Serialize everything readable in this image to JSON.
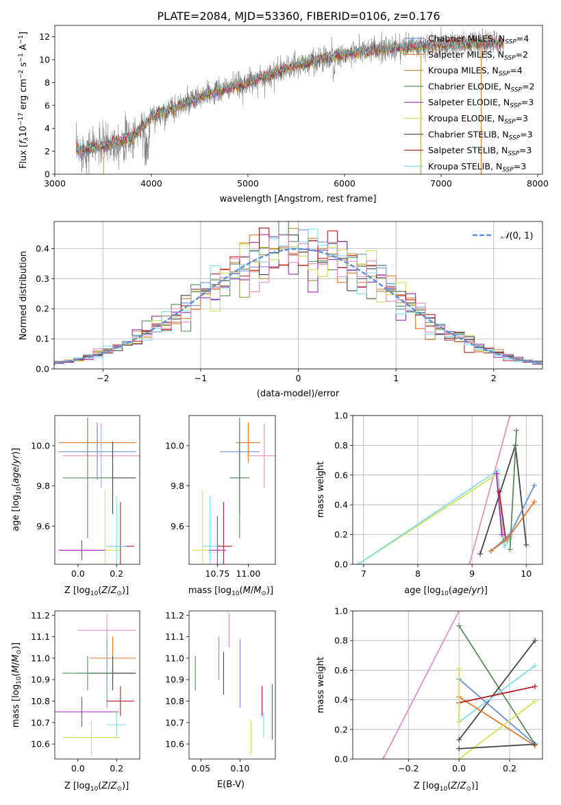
{
  "figure": {
    "title": "PLATE=2084, MJD=53360, FIBERID=0106, z=0.176"
  },
  "colors": {
    "ch_miles": "#6a8fd9",
    "sa_miles": "#e07a2a",
    "kr_miles": "#b5913a",
    "ch_elodie": "#5a8a5a",
    "sa_elodie": "#9b2fae",
    "kr_elodie": "#d4e157",
    "ch_stelib": "#444444",
    "sa_stelib": "#b71c1c",
    "kr_stelib": "#80deea",
    "pink": "#e38fbf",
    "gray": "#7f7f7f",
    "normal": "#5b8fd6"
  },
  "chart_data": [
    {
      "id": "spectrum",
      "type": "line",
      "xlabel": "wavelength [Angstrom, rest frame]",
      "ylabel_main": "Flux [",
      "ylabel_f": "f",
      "ylabel_sub": "λ",
      "ylabel_rest": "10",
      "ylabel_e17": "−17",
      "ylabel_units": " erg cm",
      "ylabel_e2": "−2",
      "ylabel_s": " s",
      "ylabel_e1": "−1",
      "ylabel_a": " A",
      "ylabel_end": "]",
      "xlim": [
        3000,
        8050
      ],
      "ylim": [
        0,
        13
      ],
      "xticks": [
        "3000",
        "4000",
        "5000",
        "6000",
        "7000",
        "8000"
      ],
      "yticks": [
        "0",
        "2",
        "4",
        "6",
        "8",
        "10",
        "12"
      ],
      "x_range": [
        3220,
        7650
      ],
      "flux_knots": [
        [
          3220,
          2.0
        ],
        [
          3500,
          2.5
        ],
        [
          3800,
          3.2
        ],
        [
          4000,
          5.0
        ],
        [
          4300,
          6.0
        ],
        [
          4600,
          7.0
        ],
        [
          5000,
          8.0
        ],
        [
          5500,
          9.5
        ],
        [
          6000,
          10.5
        ],
        [
          6500,
          11.0
        ],
        [
          7000,
          11.3
        ],
        [
          7500,
          11.5
        ],
        [
          7650,
          11.4
        ]
      ],
      "legend": [
        {
          "label": "Chabrier MILES, N",
          "sub": "SSP",
          "val": "=4",
          "color": "ch_miles"
        },
        {
          "label": "Salpeter MILES, N",
          "sub": "SSP",
          "val": "=2",
          "color": "sa_miles"
        },
        {
          "label": "Kroupa MILES, N",
          "sub": "SSP",
          "val": "=4",
          "color": "kr_miles"
        },
        {
          "label": "Chabrier ELODIE, N",
          "sub": "SSP",
          "val": "=2",
          "color": "ch_elodie"
        },
        {
          "label": "Salpeter ELODIE, N",
          "sub": "SSP",
          "val": "=3",
          "color": "sa_elodie"
        },
        {
          "label": "Kroupa ELODIE, N",
          "sub": "SSP",
          "val": "=3",
          "color": "kr_elodie"
        },
        {
          "label": "Chabrier STELIB, N",
          "sub": "SSP",
          "val": "=3",
          "color": "ch_stelib"
        },
        {
          "label": "Salpeter STELIB, N",
          "sub": "SSP",
          "val": "=3",
          "color": "sa_stelib"
        },
        {
          "label": "Kroupa STELIB, N",
          "sub": "SSP",
          "val": "=3",
          "color": "kr_stelib"
        }
      ]
    },
    {
      "id": "hist",
      "type": "step",
      "xlabel": "(data-model)/error",
      "ylabel": "Normed distribution",
      "xlim": [
        -2.5,
        2.5
      ],
      "ylim": [
        0,
        0.49
      ],
      "xticks": [
        -2,
        -1,
        0,
        1,
        2
      ],
      "xtick_labels": [
        "−2",
        "−1",
        "0",
        "1",
        "2"
      ],
      "yticks": [
        0,
        0.1,
        0.2,
        0.3,
        0.4
      ],
      "ytick_labels": [
        "0.0",
        "0.1",
        "0.2",
        "0.3",
        "0.4"
      ],
      "bin_width": 0.1,
      "legend_label": "(0, 1)",
      "legend_script": "𝒩"
    },
    {
      "id": "age_vs_Z",
      "type": "errorbar",
      "xlabel": "Z [log",
      "ylabel": "age  [log",
      "xlim": [
        -0.12,
        0.32
      ],
      "ylim": [
        9.41,
        10.15
      ],
      "xticks": [
        0.0,
        0.2
      ],
      "xtick_labels": [
        "0.0",
        "0.2"
      ],
      "yticks": [
        9.6,
        9.8,
        10.0
      ],
      "ytick_labels": [
        "9.6",
        "9.8",
        "10.0"
      ],
      "points": [
        {
          "x": 0.1,
          "xerr": 0.2,
          "y": 10.015,
          "yerr": 0.1,
          "color": "sa_miles"
        },
        {
          "x": 0.1,
          "xerr": 0.2,
          "y": 9.97,
          "yerr": 0.14,
          "color": "ch_miles"
        },
        {
          "x": 0.12,
          "xerr": 0.2,
          "y": 9.95,
          "yerr": 0.16,
          "color": "pink"
        },
        {
          "x": 0.18,
          "xerr": 0.12,
          "y": 9.84,
          "yerr": 0.18,
          "color": "ch_stelib"
        },
        {
          "x": 0.05,
          "xerr": 0.13,
          "y": 9.84,
          "yerr": 0.3,
          "color": "ch_elodie"
        },
        {
          "x": 0.14,
          "xerr": 0.08,
          "y": 9.48,
          "yerr": 0.3,
          "color": "kr_elodie"
        },
        {
          "x": 0.02,
          "xerr": 0.12,
          "y": 9.48,
          "yerr": 0.05,
          "color": "sa_elodie"
        },
        {
          "x": 0.22,
          "xerr": 0.07,
          "y": 9.5,
          "yerr": 0.22,
          "color": "sa_stelib"
        },
        {
          "x": 0.2,
          "xerr": 0.05,
          "y": 9.5,
          "yerr": 0.25,
          "color": "kr_stelib"
        }
      ]
    },
    {
      "id": "age_vs_mass",
      "type": "errorbar",
      "xlabel": "mass [log",
      "xlim": [
        10.52,
        11.22
      ],
      "ylim": [
        9.41,
        10.15
      ],
      "xticks": [
        10.75,
        11.0
      ],
      "xtick_labels": [
        "10.75",
        "11.00"
      ],
      "yticks": [
        9.6,
        9.8,
        10.0
      ],
      "ytick_labels": [
        "9.6",
        "9.8",
        "10.0"
      ],
      "points": [
        {
          "x": 11.0,
          "xerr": 0.1,
          "y": 10.015,
          "yerr": 0.1,
          "color": "sa_miles"
        },
        {
          "x": 10.93,
          "xerr": 0.16,
          "y": 9.97,
          "yerr": 0.14,
          "color": "ch_miles"
        },
        {
          "x": 11.13,
          "xerr": 0.14,
          "y": 9.95,
          "yerr": 0.16,
          "color": "pink"
        },
        {
          "x": 10.93,
          "xerr": 0.08,
          "y": 9.84,
          "yerr": 0.18,
          "color": "ch_stelib"
        },
        {
          "x": 10.93,
          "xerr": 0.08,
          "y": 9.84,
          "yerr": 0.3,
          "color": "ch_elodie"
        },
        {
          "x": 10.63,
          "xerr": 0.08,
          "y": 9.48,
          "yerr": 0.3,
          "color": "kr_elodie"
        },
        {
          "x": 10.75,
          "xerr": 0.07,
          "y": 9.48,
          "yerr": 0.17,
          "color": "sa_elodie"
        },
        {
          "x": 10.8,
          "xerr": 0.07,
          "y": 9.5,
          "yerr": 0.22,
          "color": "sa_stelib"
        },
        {
          "x": 10.69,
          "xerr": 0.06,
          "y": 9.5,
          "yerr": 0.25,
          "color": "kr_stelib"
        }
      ]
    },
    {
      "id": "mass_vs_Z",
      "type": "errorbar",
      "xlabel": "Z [log",
      "ylabel": "mass [log",
      "xlim": [
        -0.12,
        0.32
      ],
      "ylim": [
        10.53,
        11.22
      ],
      "xticks": [
        0.0,
        0.2
      ],
      "xtick_labels": [
        "0.0",
        "0.2"
      ],
      "yticks": [
        10.6,
        10.7,
        10.8,
        10.9,
        11.0,
        11.1,
        11.2
      ],
      "ytick_labels": [
        "10.6",
        "10.7",
        "10.8",
        "10.9",
        "11.0",
        "11.1",
        "11.2"
      ],
      "points": [
        {
          "x": 0.15,
          "xerr": 0.15,
          "y": 11.13,
          "yerr": 0.08,
          "color": "pink"
        },
        {
          "x": 0.18,
          "xerr": 0.12,
          "y": 11.0,
          "yerr": 0.1,
          "color": "sa_miles"
        },
        {
          "x": 0.15,
          "xerr": 0.15,
          "y": 10.93,
          "yerr": 0.16,
          "color": "ch_miles"
        },
        {
          "x": 0.18,
          "xerr": 0.12,
          "y": 10.93,
          "yerr": 0.08,
          "color": "ch_stelib"
        },
        {
          "x": 0.05,
          "xerr": 0.13,
          "y": 10.93,
          "yerr": 0.08,
          "color": "ch_elodie"
        },
        {
          "x": 0.22,
          "xerr": 0.07,
          "y": 10.8,
          "yerr": 0.07,
          "color": "sa_stelib"
        },
        {
          "x": 0.02,
          "xerr": 0.19,
          "y": 10.75,
          "yerr": 0.07,
          "color": "sa_elodie"
        },
        {
          "x": 0.2,
          "xerr": 0.05,
          "y": 10.69,
          "yerr": 0.06,
          "color": "kr_stelib"
        },
        {
          "x": 0.07,
          "xerr": 0.15,
          "y": 10.63,
          "yerr": 0.08,
          "color": "kr_elodie"
        }
      ]
    },
    {
      "id": "mass_vs_ebv",
      "type": "errorbar",
      "xlabel": "E(B-V)",
      "xlim": [
        0.035,
        0.145
      ],
      "ylim": [
        10.53,
        11.22
      ],
      "xticks": [
        0.05,
        0.1
      ],
      "xtick_labels": [
        "0.05",
        "0.10"
      ],
      "yticks": [
        10.6,
        10.7,
        10.8,
        10.9,
        11.0,
        11.1,
        11.2
      ],
      "ytick_labels": [
        "10.6",
        "10.7",
        "10.8",
        "10.9",
        "11.0",
        "11.1",
        "11.2"
      ],
      "points": [
        {
          "x": 0.043,
          "y": 10.93,
          "yerr": 0.08,
          "color": "ch_elodie"
        },
        {
          "x": 0.073,
          "y": 11.0,
          "yerr": 0.1,
          "color": "sa_miles"
        },
        {
          "x": 0.079,
          "y": 10.93,
          "yerr": 0.1,
          "color": "ch_stelib"
        },
        {
          "x": 0.086,
          "y": 11.13,
          "yerr": 0.08,
          "color": "pink"
        },
        {
          "x": 0.1,
          "y": 10.93,
          "yerr": 0.16,
          "color": "ch_miles"
        },
        {
          "x": 0.114,
          "y": 10.63,
          "yerr": 0.08,
          "color": "kr_elodie"
        },
        {
          "x": 0.128,
          "y": 10.8,
          "yerr": 0.07,
          "color": "sa_stelib"
        },
        {
          "x": 0.13,
          "y": 10.69,
          "yerr": 0.06,
          "color": "kr_stelib"
        },
        {
          "x": 0.141,
          "y": 10.75,
          "yerr": 0.13,
          "color": "sa_elodie"
        }
      ]
    },
    {
      "id": "weight_vs_age",
      "type": "line",
      "xlabel": "age  [log",
      "ylabel": "mass weight",
      "xlim": [
        6.8,
        10.3
      ],
      "ylim": [
        0,
        1
      ],
      "xticks": [
        7,
        8,
        9,
        10
      ],
      "xtick_labels": [
        "7",
        "8",
        "9",
        "10"
      ],
      "yticks": [
        0,
        0.2,
        0.4,
        0.6,
        0.8,
        1.0
      ],
      "ytick_labels": [
        "0.0",
        "0.2",
        "0.4",
        "0.6",
        "0.8",
        "1.0"
      ],
      "series": [
        {
          "color": "pink",
          "x": [
            8.95,
            9.7
          ],
          "y": [
            0.0,
            1.0
          ]
        },
        {
          "color": "kr_elodie",
          "x": [
            6.9,
            9.48,
            9.58
          ],
          "y": [
            0.0,
            0.61,
            0.15
          ]
        },
        {
          "color": "kr_stelib",
          "x": [
            6.9,
            9.47,
            9.6,
            9.72
          ],
          "y": [
            0.0,
            0.63,
            0.12,
            0.18
          ]
        },
        {
          "color": "ch_stelib",
          "x": [
            9.15,
            9.8,
            10.0
          ],
          "y": [
            0.07,
            0.8,
            0.13
          ]
        },
        {
          "color": "ch_elodie",
          "x": [
            9.7,
            9.82
          ],
          "y": [
            0.1,
            0.9
          ]
        },
        {
          "color": "sa_stelib",
          "x": [
            9.5,
            9.62
          ],
          "y": [
            0.49,
            0.17
          ]
        },
        {
          "color": "ch_miles",
          "x": [
            9.35,
            9.7,
            10.15
          ],
          "y": [
            0.09,
            0.2,
            0.53
          ]
        },
        {
          "color": "sa_miles",
          "x": [
            9.35,
            9.65,
            10.15
          ],
          "y": [
            0.09,
            0.17,
            0.42
          ]
        },
        {
          "color": "sa_elodie",
          "x": [
            9.45,
            9.55
          ],
          "y": [
            0.61,
            0.2
          ]
        }
      ]
    },
    {
      "id": "weight_vs_Z",
      "type": "line",
      "xlabel": "Z [log",
      "ylabel": "mass weight",
      "xlim": [
        -0.42,
        0.33
      ],
      "ylim": [
        0,
        1
      ],
      "xticks": [
        -0.2,
        0.0,
        0.2
      ],
      "xtick_labels": [
        "−0.2",
        "0.0",
        "0.2"
      ],
      "yticks": [
        0,
        0.2,
        0.4,
        0.6,
        0.8,
        1.0
      ],
      "ytick_labels": [
        "0.0",
        "0.2",
        "0.4",
        "0.6",
        "0.8",
        "1.0"
      ],
      "series": [
        {
          "color": "pink",
          "x": [
            -0.3,
            0.0
          ],
          "y": [
            0.0,
            1.0
          ]
        },
        {
          "color": "ch_elodie",
          "x": [
            0.0,
            0.3
          ],
          "y": [
            0.9,
            0.1
          ]
        },
        {
          "color": "ch_stelib",
          "x": [
            0.0,
            0.3
          ],
          "y": [
            0.13,
            0.8
          ]
        },
        {
          "color": "kr_stelib",
          "x": [
            0.0,
            0.3
          ],
          "y": [
            0.25,
            0.63
          ]
        },
        {
          "color": "ch_miles",
          "x": [
            0.0,
            0.3
          ],
          "y": [
            0.54,
            0.1
          ]
        },
        {
          "color": "sa_miles",
          "x": [
            0.0,
            0.3
          ],
          "y": [
            0.42,
            0.09
          ]
        },
        {
          "color": "sa_stelib",
          "x": [
            0.0,
            0.3
          ],
          "y": [
            0.38,
            0.49
          ]
        },
        {
          "color": "kr_elodie",
          "x": [
            0.0,
            0.3
          ],
          "y": [
            0.0,
            0.39
          ]
        },
        {
          "color": "kr_elodie",
          "x": [
            0.0,
            0.0
          ],
          "y": [
            0.25,
            0.61
          ]
        },
        {
          "color": "ch_stelib",
          "x": [
            0.0,
            0.3
          ],
          "y": [
            0.07,
            0.1
          ]
        }
      ]
    }
  ]
}
